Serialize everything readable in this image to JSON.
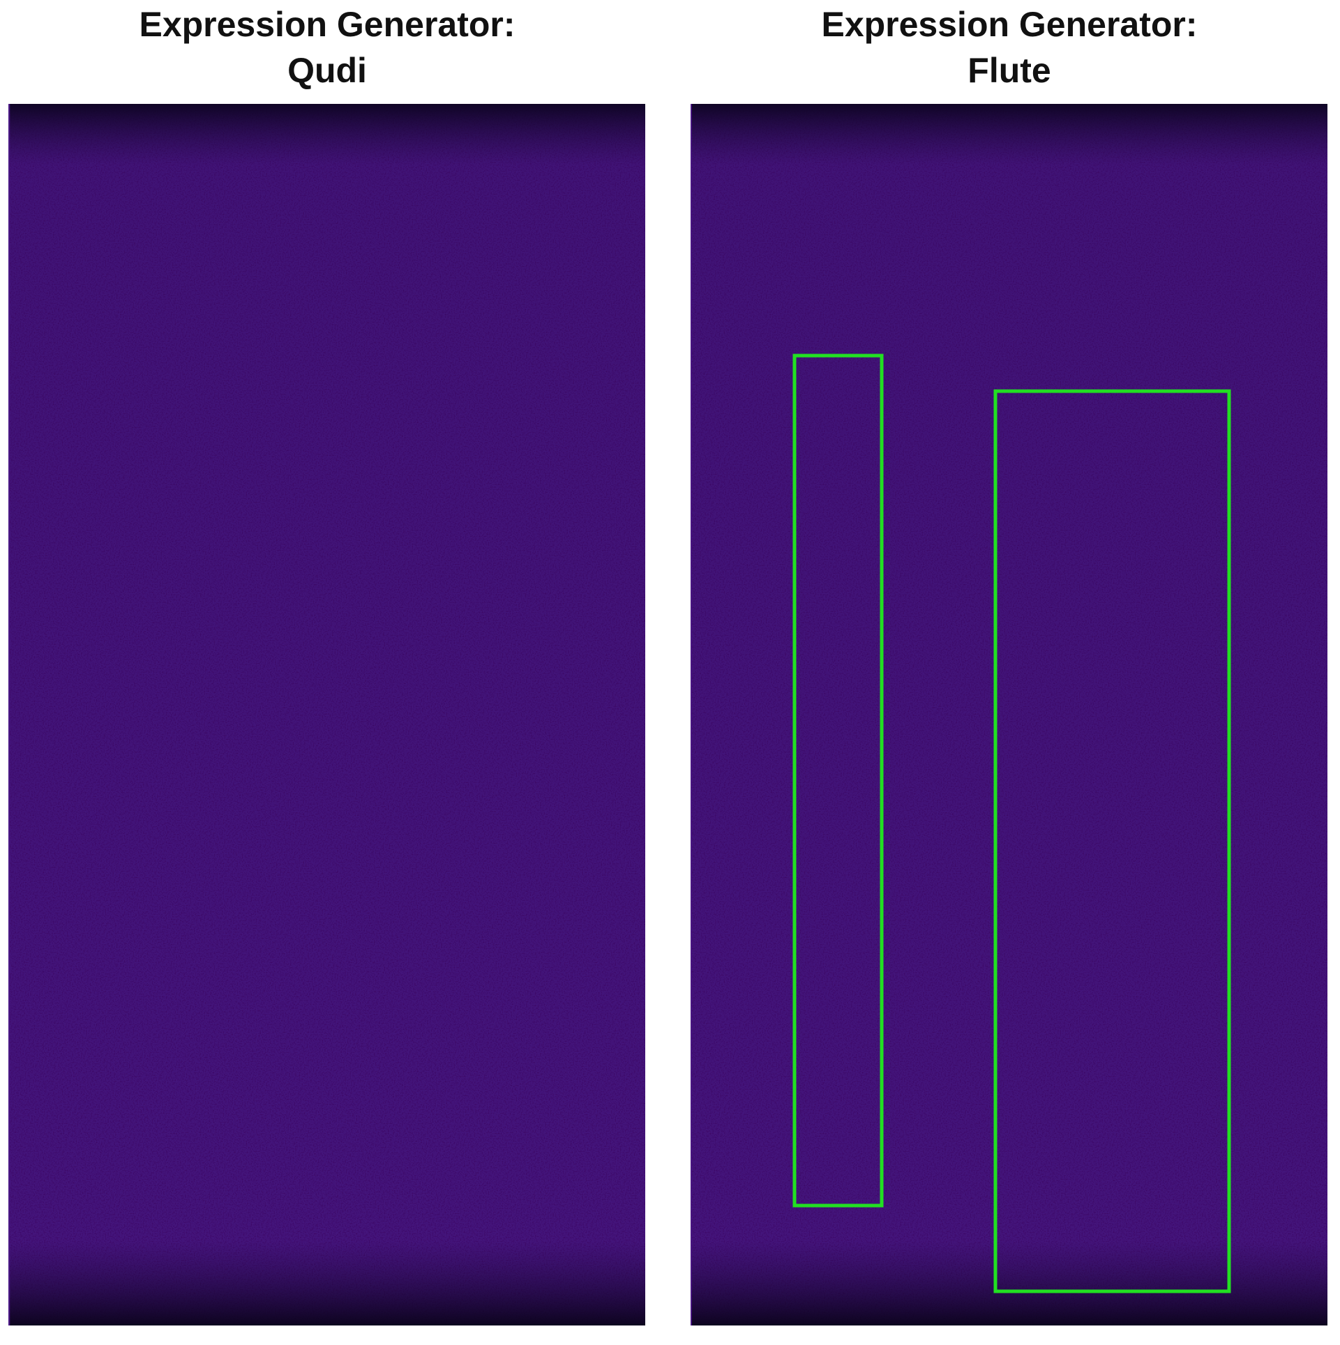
{
  "panels": [
    {
      "title_lines": [
        "Expression Generator:",
        "Qudi"
      ]
    },
    {
      "title_lines": [
        "Expression Generator:",
        "Flute"
      ]
    }
  ]
}
